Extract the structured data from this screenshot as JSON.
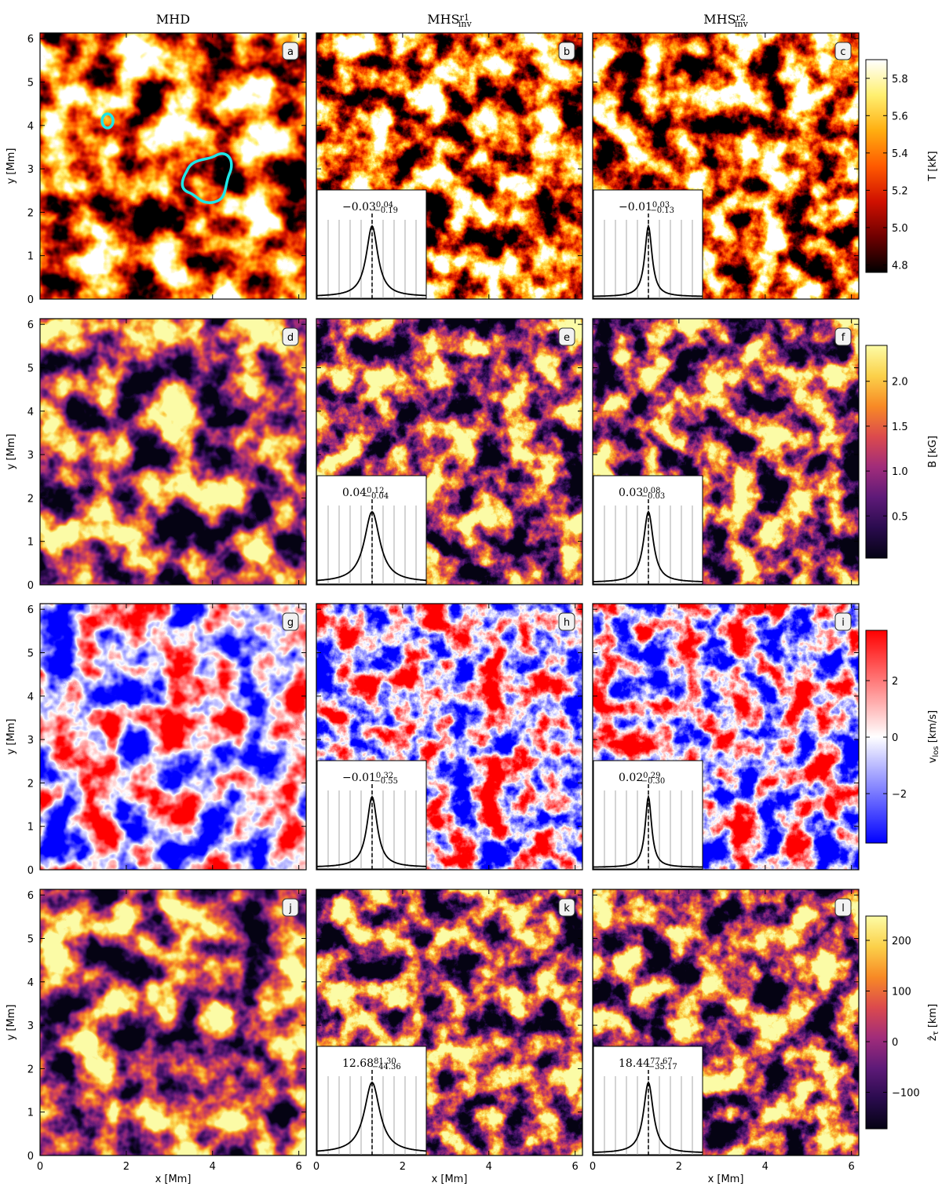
{
  "columns": [
    {
      "title": "MHD"
    },
    {
      "title": "MHS",
      "sup": "r1",
      "sub": "inv"
    },
    {
      "title": "MHS",
      "sup": "r2",
      "sub": "inv"
    }
  ],
  "xlabel": "x [Mm]",
  "ylabel": "y [Mm]",
  "xlim": [
    0,
    6.17
  ],
  "ylim": [
    0,
    6.13
  ],
  "xticks": [
    0,
    2,
    4,
    6
  ],
  "yticks": [
    0,
    1,
    2,
    3,
    4,
    5,
    6
  ],
  "rows": [
    {
      "panels": [
        "a",
        "b",
        "c"
      ],
      "colorbar": {
        "label": [
          {
            "t": "T [kK]"
          }
        ],
        "lim": [
          4.76,
          5.9
        ],
        "ticks": [
          4.8,
          {
            "value": 5,
            "label": "5.0"
          },
          5.2,
          5.4,
          5.6,
          5.8
        ],
        "colormap": [
          "#000000",
          "#6e0000",
          "#d01000",
          "#ff5a00",
          "#ffae10",
          "#fff070",
          "#ffffff"
        ]
      },
      "insets": [
        {
          "median": "−0.03",
          "upper": "0.04",
          "lower": "−0.19"
        },
        {
          "median": "−0.01",
          "upper": "0.03",
          "lower": "−0.13"
        }
      ]
    },
    {
      "panels": [
        "d",
        "e",
        "f"
      ],
      "colorbar": {
        "label": [
          {
            "t": "B [kG]"
          }
        ],
        "lim": [
          0.03,
          2.4
        ],
        "ticks": [
          0.5,
          {
            "value": 1,
            "label": "1.0"
          },
          1.5,
          {
            "value": 2,
            "label": "2.0"
          }
        ],
        "colormap": [
          "#050314",
          "#2a0b4e",
          "#5e1a78",
          "#a12c7a",
          "#dc4a4d",
          "#f88a25",
          "#fbd14a",
          "#fcfca6"
        ]
      },
      "insets": [
        {
          "median": "0.04",
          "upper": "0.12",
          "lower": "−0.04"
        },
        {
          "median": "0.03",
          "upper": "0.08",
          "lower": "−0.03"
        }
      ]
    },
    {
      "panels": [
        "g",
        "h",
        "i"
      ],
      "colorbar": {
        "label": [
          {
            "t": "v"
          },
          {
            "sub": "los"
          },
          {
            "t": " [km/s]"
          }
        ],
        "lim": [
          -3.75,
          3.78
        ],
        "ticks": [
          {
            "value": -2,
            "label": "−2"
          },
          0,
          2
        ],
        "colormap": [
          "#0000ff",
          "#8080ff",
          "#ffffff",
          "#ff8080",
          "#ff0000"
        ]
      },
      "insets": [
        {
          "median": "−0.01",
          "upper": "0.32",
          "lower": "−0.55"
        },
        {
          "median": "0.02",
          "upper": "0.29",
          "lower": "−0.30"
        }
      ]
    },
    {
      "panels": [
        "j",
        "k",
        "l"
      ],
      "colorbar": {
        "label": [
          {
            "t": "ẑ"
          },
          {
            "sub": "τ"
          },
          {
            "t": " [km]"
          }
        ],
        "lim": [
          -172,
          248
        ],
        "ticks": [
          {
            "value": -100,
            "label": "−100"
          },
          0,
          100,
          200
        ],
        "colormap": [
          "#050314",
          "#2a0b4e",
          "#5e1a78",
          "#a12c7a",
          "#dc4a4d",
          "#f88a25",
          "#fbd14a",
          "#fcfca6"
        ]
      },
      "insets": [
        {
          "median": "12.68",
          "upper": "81.30",
          "lower": "−44.36"
        },
        {
          "median": "18.44",
          "upper": "77.67",
          "lower": "−35.17"
        }
      ]
    }
  ]
}
